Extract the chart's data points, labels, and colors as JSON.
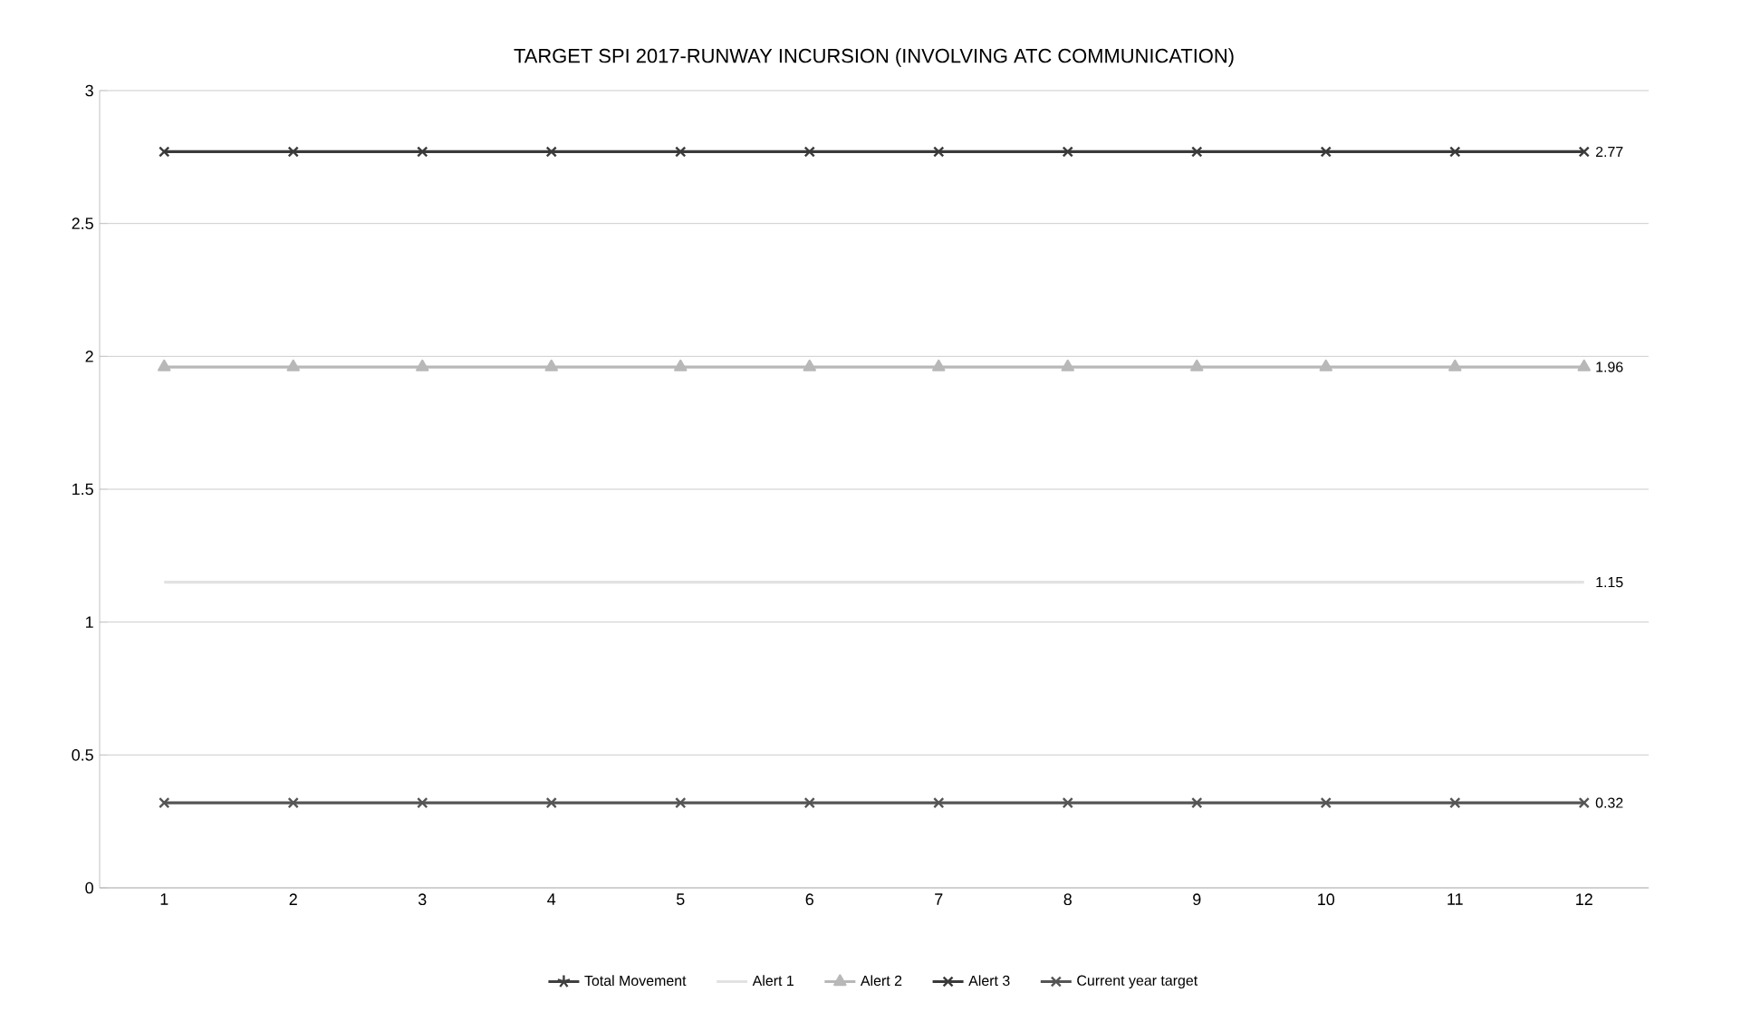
{
  "chart_data": {
    "type": "line",
    "title": "TARGET SPI 2017-RUNWAY INCURSION (INVOLVING ATC COMMUNICATION)",
    "categories": [
      "1",
      "2",
      "3",
      "4",
      "5",
      "6",
      "7",
      "8",
      "9",
      "10",
      "11",
      "12"
    ],
    "series": [
      {
        "name": "Total Movement",
        "color": "#404040",
        "marker": "star",
        "values": [
          null,
          null,
          null,
          null,
          null,
          null,
          null,
          null,
          null,
          null,
          null,
          null
        ],
        "value_labels": [
          null,
          null,
          null,
          null,
          null,
          null,
          null,
          null,
          null,
          null,
          null,
          null
        ]
      },
      {
        "name": "Alert 1",
        "color": "#e2e2e2",
        "marker": "none",
        "values": [
          1.15,
          1.15,
          1.15,
          1.15,
          1.15,
          1.15,
          1.15,
          1.15,
          1.15,
          1.15,
          1.15,
          1.15
        ],
        "value_labels": [
          null,
          null,
          null,
          null,
          null,
          null,
          null,
          null,
          null,
          null,
          null,
          "1.15"
        ]
      },
      {
        "name": "Alert 2",
        "color": "#b8b8b8",
        "marker": "triangle",
        "values": [
          1.96,
          1.96,
          1.96,
          1.96,
          1.96,
          1.96,
          1.96,
          1.96,
          1.96,
          1.96,
          1.96,
          1.96
        ],
        "value_labels": [
          null,
          null,
          null,
          null,
          null,
          null,
          null,
          null,
          null,
          null,
          null,
          "1.96"
        ]
      },
      {
        "name": "Alert 3",
        "color": "#3a3a3a",
        "marker": "cross",
        "values": [
          2.77,
          2.77,
          2.77,
          2.77,
          2.77,
          2.77,
          2.77,
          2.77,
          2.77,
          2.77,
          2.77,
          2.77
        ],
        "value_labels": [
          null,
          null,
          null,
          null,
          null,
          null,
          null,
          null,
          null,
          null,
          null,
          "2.77"
        ]
      },
      {
        "name": "Current year target",
        "color": "#555555",
        "marker": "cross",
        "values": [
          0.32,
          0.32,
          0.32,
          0.32,
          0.32,
          0.32,
          0.32,
          0.32,
          0.32,
          0.32,
          0.32,
          0.32
        ],
        "value_labels": [
          null,
          null,
          null,
          null,
          null,
          null,
          null,
          null,
          null,
          null,
          null,
          "0.32"
        ]
      }
    ],
    "ylim": [
      0,
      3
    ],
    "yticks": [
      0,
      0.5,
      1,
      1.5,
      2,
      2.5,
      3
    ],
    "grid": "y",
    "legend": "bottom",
    "line_style": "solid"
  }
}
